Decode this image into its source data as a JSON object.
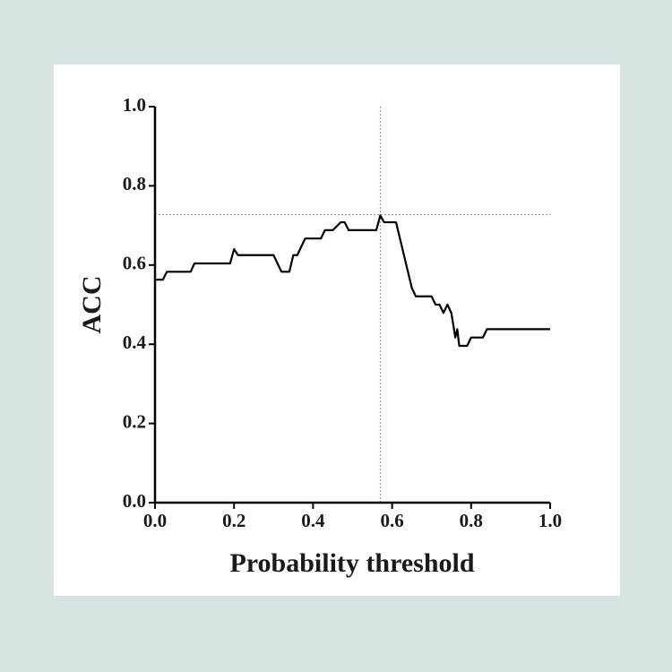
{
  "chart_data": {
    "type": "line",
    "x_label": "Probability threshold",
    "y_label": "ACC",
    "x": [
      0,
      0.02,
      0.03,
      0.09,
      0.1,
      0.19,
      0.2,
      0.21,
      0.3,
      0.32,
      0.34,
      0.35,
      0.36,
      0.38,
      0.42,
      0.43,
      0.45,
      0.47,
      0.48,
      0.49,
      0.56,
      0.57,
      0.58,
      0.61,
      0.63,
      0.65,
      0.66,
      0.7,
      0.71,
      0.72,
      0.73,
      0.74,
      0.75,
      0.76,
      0.765,
      0.77,
      0.79,
      0.8,
      0.83,
      0.84,
      1
    ],
    "series": [
      {
        "name": "ACC",
        "color": "#000000",
        "values": [
          0.563,
          0.563,
          0.583,
          0.583,
          0.604,
          0.604,
          0.64,
          0.625,
          0.625,
          0.583,
          0.583,
          0.625,
          0.625,
          0.667,
          0.667,
          0.688,
          0.688,
          0.708,
          0.708,
          0.688,
          0.688,
          0.725,
          0.708,
          0.708,
          0.625,
          0.542,
          0.521,
          0.521,
          0.5,
          0.5,
          0.479,
          0.5,
          0.479,
          0.417,
          0.438,
          0.396,
          0.396,
          0.417,
          0.417,
          0.438,
          0.438
        ]
      }
    ],
    "reference_x": 0.57,
    "reference_y": 0.727,
    "xlim": [
      0,
      1
    ],
    "ylim": [
      0,
      1
    ],
    "xticks": [
      {
        "value": 0,
        "label": "0.0"
      },
      0.2,
      0.4,
      0.6,
      0.8,
      {
        "value": 1,
        "label": "1.0"
      }
    ],
    "yticks": [
      {
        "value": 0,
        "label": "0.0"
      },
      0.2,
      0.4,
      0.6,
      0.8,
      {
        "value": 1,
        "label": "1.0"
      }
    ]
  }
}
